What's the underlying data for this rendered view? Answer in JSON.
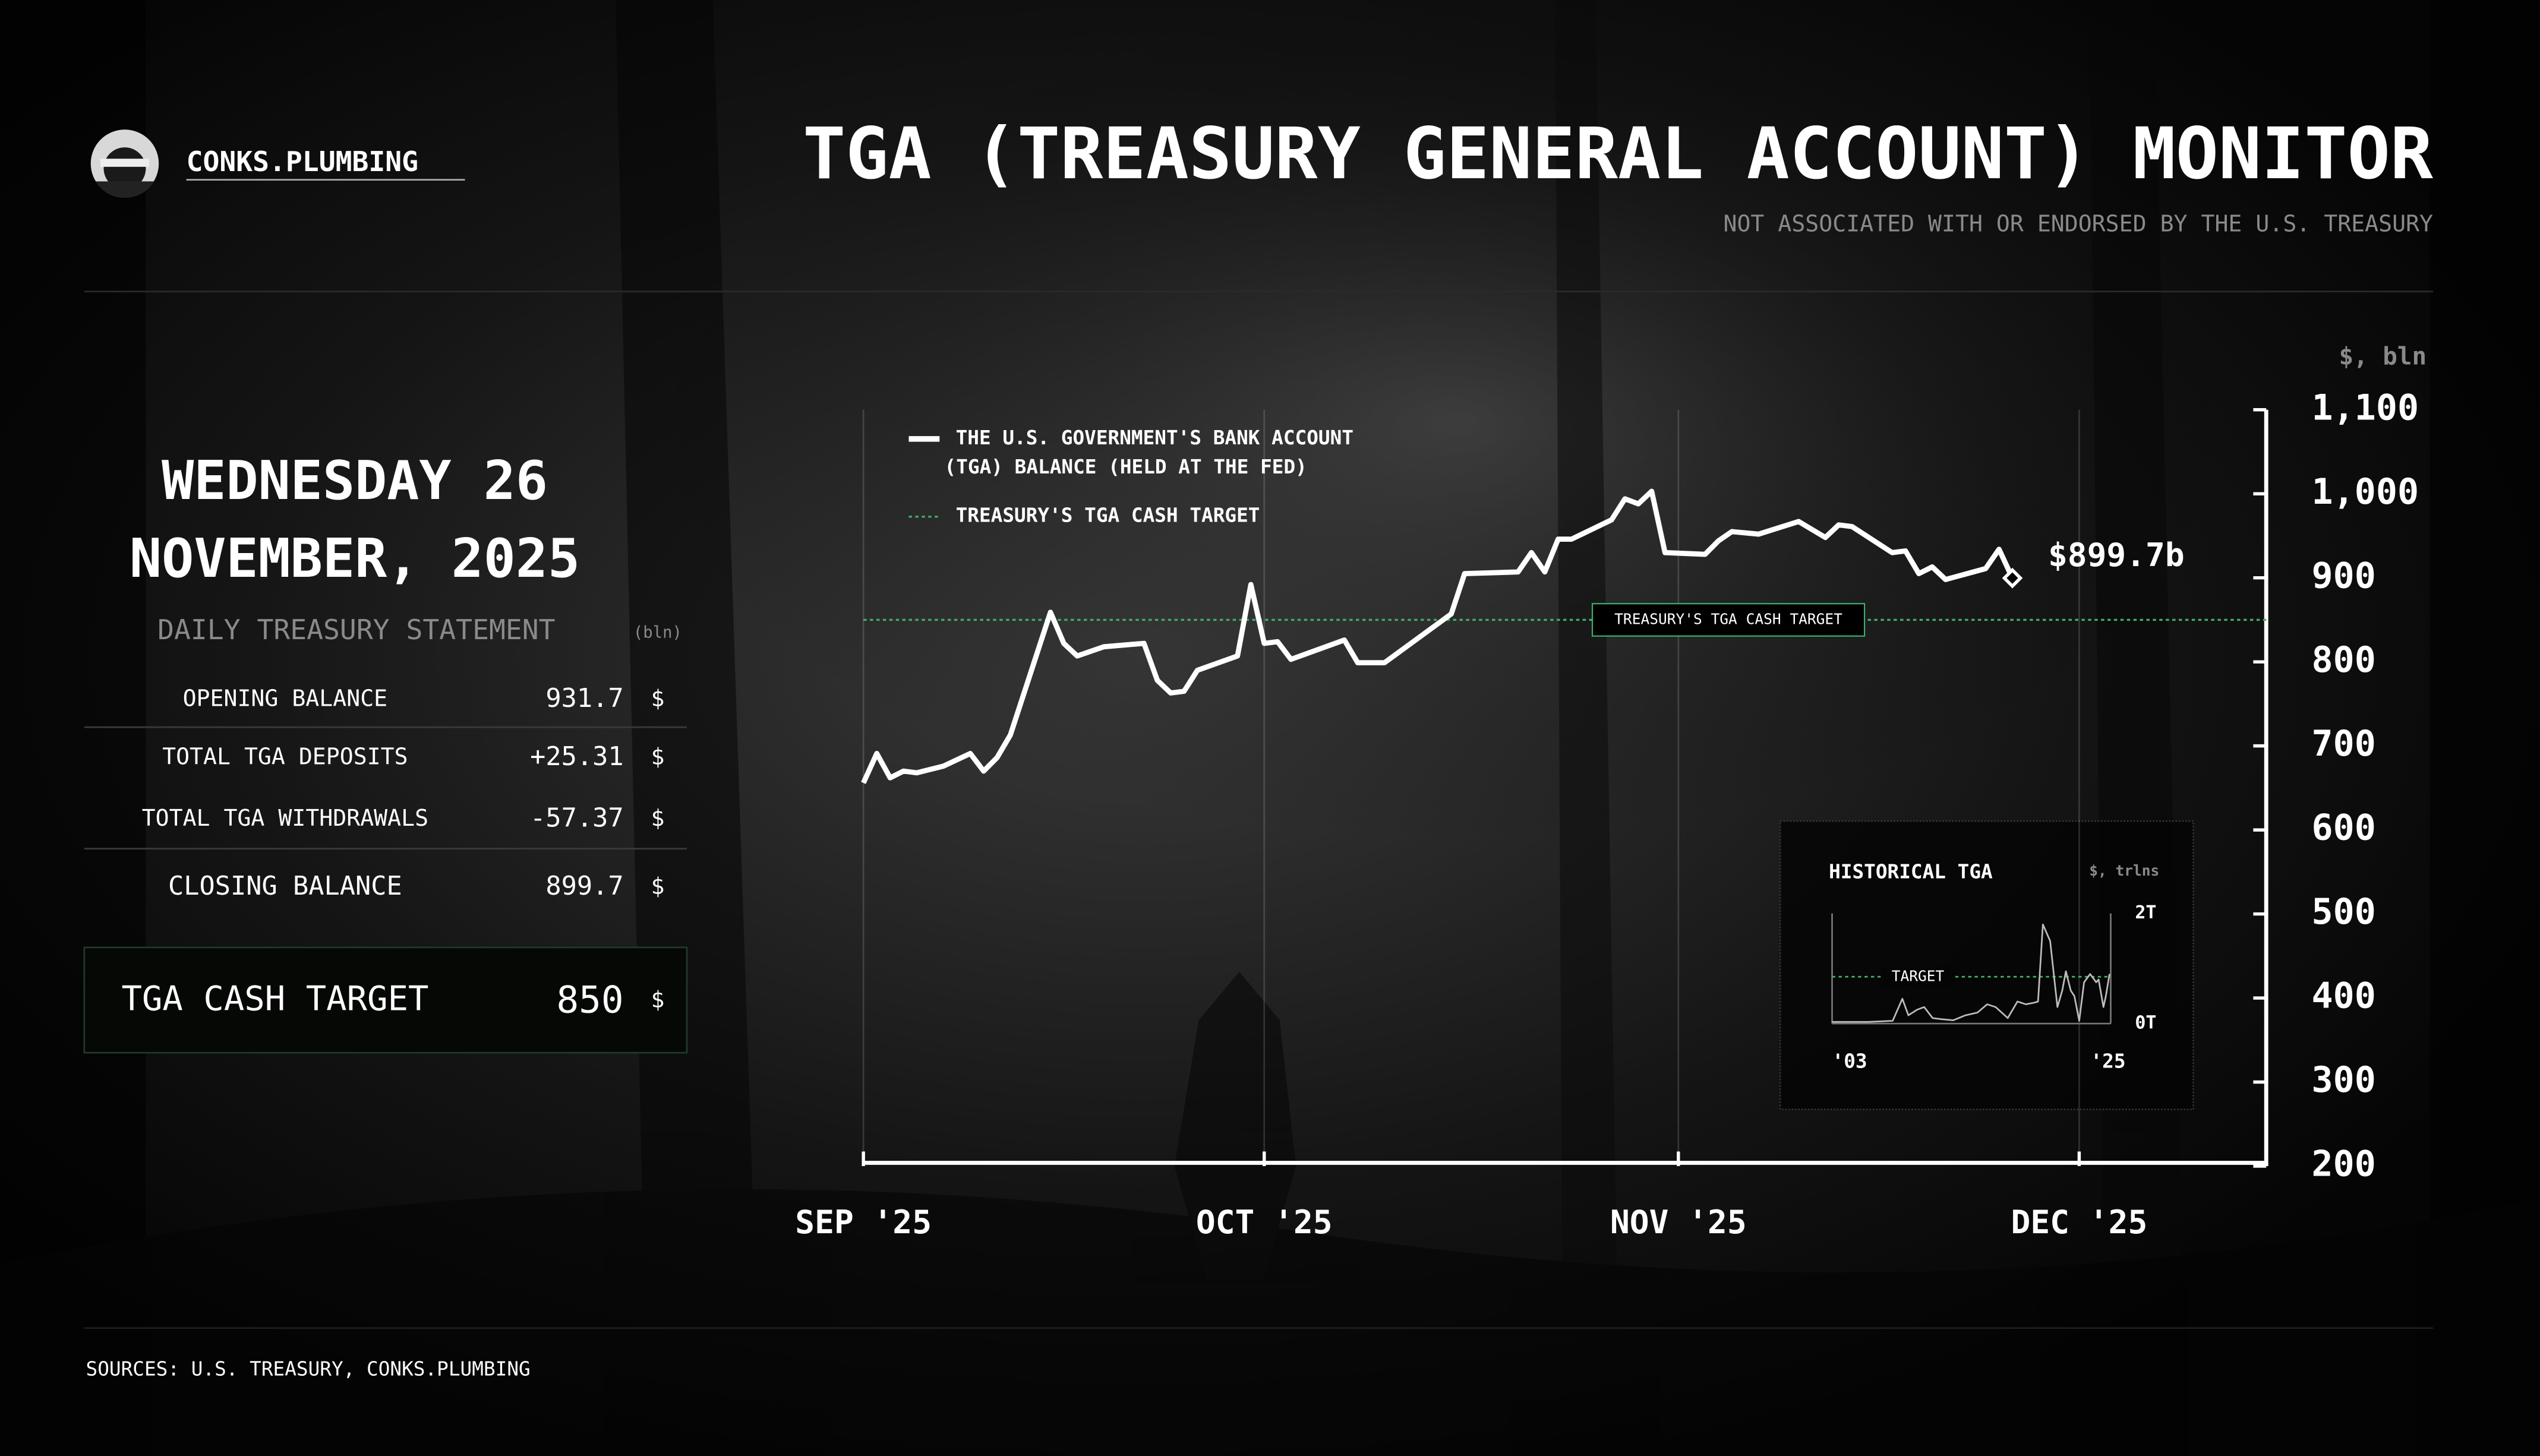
{
  "header": {
    "brand": "CONKS.PLUMBING",
    "title": "TGA (TREASURY GENERAL ACCOUNT) MONITOR",
    "subtitle": "NOT ASSOCIATED WITH OR ENDORSED BY THE U.S. TREASURY"
  },
  "summary": {
    "date_lines": [
      "WEDNESDAY 26",
      "NOVEMBER, 2025"
    ],
    "statement_title": "DAILY TREASURY STATEMENT",
    "unit": "(bln)",
    "rows": [
      {
        "label": "OPENING BALANCE",
        "value": "931.7",
        "currency": "$",
        "color": "#e8e8e8"
      },
      {
        "label": "TOTAL TGA DEPOSITS",
        "value": "+25.31",
        "currency": "$",
        "color": "#3fae6a"
      },
      {
        "label": "TOTAL TGA WITHDRAWALS",
        "value": "-57.37",
        "currency": "$",
        "color": "#e0404a"
      },
      {
        "label": "CLOSING BALANCE",
        "value": "899.7",
        "currency": "$",
        "color": "#e8e8e8"
      }
    ],
    "target": {
      "label": "TGA CASH TARGET",
      "value": "850",
      "currency": "$",
      "color": "#3fae6a"
    }
  },
  "chart_data": [
    {
      "type": "line",
      "y_axis_label": "$, bln",
      "y_axis_side": "right",
      "grid": true,
      "x": [
        0,
        1,
        2,
        3,
        4,
        6,
        8,
        9,
        10,
        11,
        14,
        15,
        16,
        18,
        21,
        22,
        23,
        24,
        25,
        28,
        29,
        30,
        31,
        32,
        36,
        37,
        39,
        44,
        45,
        49,
        50,
        51,
        52,
        53,
        56,
        57,
        58,
        59,
        60,
        63,
        64,
        65,
        67,
        70,
        72,
        73,
        74,
        77,
        78,
        79,
        80,
        81,
        84,
        85,
        86
      ],
      "xlim": [
        0,
        105
      ],
      "xticks": [
        {
          "value": 0,
          "label": "SEP '25"
        },
        {
          "value": 30,
          "label": "OCT '25"
        },
        {
          "value": 61,
          "label": "NOV '25"
        },
        {
          "value": 91,
          "label": "DEC '25"
        }
      ],
      "ylim": [
        200,
        1100
      ],
      "yticks": [
        200,
        300,
        400,
        500,
        600,
        700,
        800,
        900,
        {
          "value": 1000,
          "label": "1,000"
        },
        {
          "value": 1100,
          "label": "1,100"
        }
      ],
      "series": [
        {
          "name": "THE U.S. GOVERNMENT'S BANK ACCOUNT (TGA) BALANCE (HELD AT THE FED)",
          "color": "#ffffff",
          "values": [
            656,
            691,
            662,
            670,
            668,
            676,
            691,
            670,
            686,
            713,
            859,
            822,
            807,
            818,
            822,
            778,
            763,
            765,
            790,
            807,
            892,
            822,
            824,
            803,
            826,
            799,
            799,
            857,
            905,
            907,
            930,
            907,
            946,
            946,
            969,
            994,
            988,
            1003,
            930,
            928,
            944,
            955,
            952,
            967,
            948,
            963,
            961,
            930,
            932,
            905,
            913,
            898,
            911,
            934,
            899.7
          ]
        }
      ],
      "reference_lines": [
        {
          "name": "TREASURY'S TGA CASH TARGET",
          "value": 850,
          "color": "#3fae6a"
        }
      ],
      "annotations": [
        {
          "text": "$899.7b"
        }
      ]
    },
    {
      "type": "line",
      "title": "HISTORICAL TGA",
      "y_axis_label": "$, trlns",
      "x": [
        2003,
        2004,
        2005,
        2006,
        2007,
        2008,
        2008.8,
        2009.3,
        2010,
        2010.6,
        2011.3,
        2012,
        2013,
        2014,
        2015,
        2015.8,
        2016.5,
        2017.5,
        2018.3,
        2019,
        2019.7,
        2020,
        2020.4,
        2020.6,
        2021,
        2021.3,
        2021.6,
        2022,
        2022.3,
        2022.7,
        2023,
        2023.4,
        2023.8,
        2024.3,
        2024.8,
        2025,
        2025.4,
        2025.6,
        2025.9
      ],
      "xlim": [
        2003,
        2026
      ],
      "xticks": [
        {
          "value": 2003,
          "label": "'03"
        },
        {
          "value": 2025,
          "label": "'25"
        }
      ],
      "ylim": [
        0,
        2
      ],
      "yticks": [
        {
          "value": 0,
          "label": "0T"
        },
        {
          "value": 2,
          "label": "2T"
        }
      ],
      "series": [
        {
          "color": "#bdbdbd",
          "values": [
            0.03,
            0.03,
            0.03,
            0.03,
            0.04,
            0.05,
            0.45,
            0.15,
            0.25,
            0.3,
            0.1,
            0.08,
            0.06,
            0.15,
            0.2,
            0.35,
            0.3,
            0.1,
            0.4,
            0.35,
            0.38,
            0.4,
            1.8,
            1.7,
            1.5,
            0.9,
            0.3,
            0.6,
            0.95,
            0.6,
            0.5,
            0.05,
            0.75,
            0.9,
            0.75,
            0.8,
            0.3,
            0.5,
            0.9
          ]
        }
      ],
      "reference_lines": [
        {
          "label": "TARGET",
          "value": 0.85,
          "color": "#3fae6a"
        }
      ]
    }
  ],
  "footer": {
    "sources": "SOURCES: U.S. TREASURY, CONKS.PLUMBING"
  }
}
